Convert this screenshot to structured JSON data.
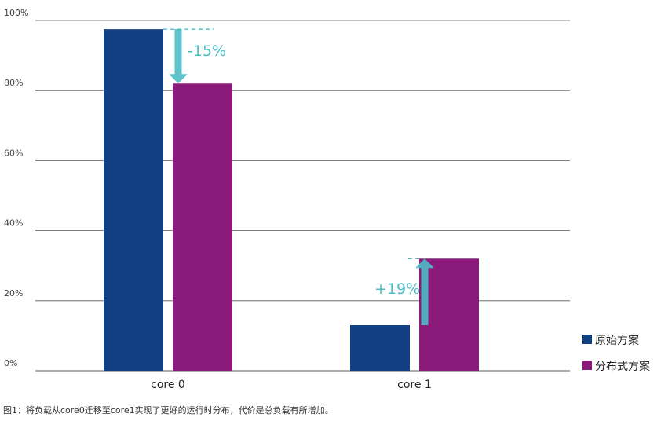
{
  "chart_data": {
    "type": "bar",
    "categories": [
      "core 0",
      "core 1"
    ],
    "series": [
      {
        "name": "原始方案",
        "color": "#123e84",
        "values": [
          97.5,
          13
        ]
      },
      {
        "name": "分布式方案",
        "color": "#8a1b7a",
        "values": [
          82,
          32
        ]
      }
    ],
    "ylim": [
      0,
      100
    ],
    "yticks": [
      0,
      20,
      40,
      60,
      80,
      100
    ],
    "ytick_labels": [
      "0%",
      "20%",
      "40%",
      "60%",
      "80%",
      "100%"
    ],
    "grid": true,
    "legend_position": "bottom-right",
    "annotations": [
      {
        "category": "core 0",
        "text": "-15%",
        "direction": "down",
        "from": 97.5,
        "to": 82
      },
      {
        "category": "core 1",
        "text": "+19%",
        "direction": "up",
        "from": 13,
        "to": 32
      }
    ],
    "annotation_color": "#4dbdc4"
  },
  "caption": "图1：将负载从core0迁移至core1实现了更好的运行时分布，代价是总负载有所增加。"
}
